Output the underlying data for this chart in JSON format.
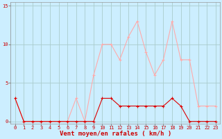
{
  "x": [
    0,
    1,
    2,
    3,
    4,
    5,
    6,
    7,
    8,
    9,
    10,
    11,
    12,
    13,
    14,
    15,
    16,
    17,
    18,
    19,
    20,
    21,
    22,
    23
  ],
  "wind_avg": [
    3,
    0,
    0,
    0,
    0,
    0,
    0,
    0,
    0,
    0,
    3,
    3,
    2,
    2,
    2,
    2,
    2,
    2,
    3,
    2,
    0,
    0,
    0,
    0
  ],
  "wind_gust": [
    3,
    0,
    0,
    0,
    0,
    0,
    0,
    3,
    0,
    6,
    10,
    10,
    8,
    11,
    13,
    9,
    6,
    8,
    13,
    8,
    8,
    2,
    2,
    2
  ],
  "avg_color": "#dd0000",
  "gust_color": "#ffaaaa",
  "bg_color": "#cceeff",
  "grid_color": "#aacccc",
  "axis_color": "#cc0000",
  "xlabel": "Vent moyen/en rafales ( km/h )",
  "yticks": [
    0,
    5,
    10,
    15
  ],
  "ylim": [
    0,
    15
  ],
  "xlim": [
    0,
    23
  ]
}
